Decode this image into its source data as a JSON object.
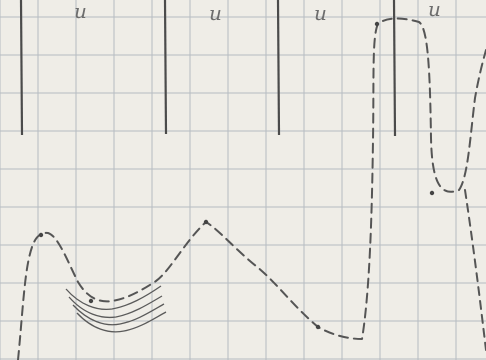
{
  "sheet": {
    "colors": {
      "paper": "#efede7",
      "grid": "#b6bcc2",
      "bold_line": "#4a4a4a",
      "pencil": "#555555"
    },
    "labels": [
      {
        "id": "label-1",
        "text": "u"
      },
      {
        "id": "label-2",
        "text": "u"
      },
      {
        "id": "label-3",
        "text": "u"
      },
      {
        "id": "label-4",
        "text": "u"
      }
    ]
  }
}
